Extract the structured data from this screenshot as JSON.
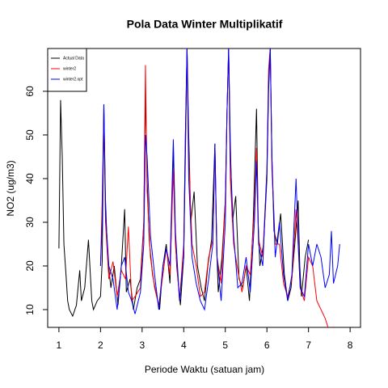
{
  "chart_data": {
    "type": "line",
    "title": "Pola Data Winter Multiplikatif",
    "x_label": "Periode Waktu (satuan jam)",
    "y_label": "NO2 (ug/m3)",
    "xlim": [
      0.73,
      8.25
    ],
    "ylim": [
      5.93,
      69.8
    ],
    "xticks": [
      1,
      2,
      3,
      4,
      5,
      6,
      7,
      8
    ],
    "yticks": [
      10,
      20,
      30,
      40,
      50,
      60
    ],
    "legend": "top-left",
    "series": [
      {
        "name": "Actual Data",
        "color": "#000000",
        "x": [
          1.0,
          1.04,
          1.08,
          1.12,
          1.17,
          1.21,
          1.25,
          1.33,
          1.42,
          1.5,
          1.54,
          1.62,
          1.71,
          1.79,
          1.83,
          1.92,
          2.0,
          2.04,
          2.08,
          2.12,
          2.17,
          2.25,
          2.33,
          2.42,
          2.5,
          2.58,
          2.62,
          2.71,
          2.79,
          2.88,
          2.96,
          3.04,
          3.08,
          3.12,
          3.17,
          3.25,
          3.33,
          3.42,
          3.5,
          3.58,
          3.67,
          3.75,
          3.79,
          3.83,
          3.92,
          4.0,
          4.04,
          4.08,
          4.12,
          4.17,
          4.25,
          4.33,
          4.42,
          4.5,
          4.58,
          4.67,
          4.75,
          4.79,
          4.83,
          4.92,
          5.0,
          5.04,
          5.08,
          5.12,
          5.17,
          5.25,
          5.33,
          5.42,
          5.5,
          5.58,
          5.67,
          5.75,
          5.79,
          5.83,
          5.92,
          6.0,
          6.04,
          6.08,
          6.12,
          6.17,
          6.25,
          6.33,
          6.42,
          6.5,
          6.58,
          6.67,
          6.75,
          6.79,
          6.83,
          6.92,
          7.0
        ],
        "values": [
          24,
          58,
          45,
          25,
          18,
          12,
          10,
          8.5,
          11,
          19,
          12,
          15,
          26,
          12,
          10,
          12,
          13,
          21,
          57,
          35,
          22,
          15,
          20,
          11,
          20,
          33,
          14,
          17,
          10,
          15,
          17,
          30,
          60,
          40,
          26,
          18,
          14,
          10,
          20,
          25,
          16,
          47,
          30,
          20,
          11,
          22,
          45,
          70,
          50,
          30,
          37,
          20,
          15,
          12,
          20,
          26,
          48,
          25,
          14,
          22,
          35,
          55,
          70,
          48,
          30,
          36,
          17,
          15,
          20,
          12,
          30,
          56,
          30,
          20,
          25,
          40,
          60,
          70,
          45,
          28,
          25,
          32,
          18,
          12,
          15,
          25,
          35,
          20,
          13,
          22,
          26
        ]
      },
      {
        "name": "winter2",
        "color": "#ff0000",
        "x": [
          2.0,
          2.04,
          2.08,
          2.12,
          2.2,
          2.3,
          2.4,
          2.5,
          2.6,
          2.67,
          2.75,
          2.83,
          2.96,
          3.04,
          3.08,
          3.12,
          3.2,
          3.3,
          3.4,
          3.5,
          3.58,
          3.67,
          3.75,
          3.8,
          3.9,
          4.0,
          4.04,
          4.08,
          4.12,
          4.2,
          4.3,
          4.4,
          4.5,
          4.6,
          4.7,
          4.75,
          4.8,
          4.9,
          5.0,
          5.04,
          5.08,
          5.12,
          5.2,
          5.3,
          5.4,
          5.5,
          5.6,
          5.7,
          5.75,
          5.8,
          5.9,
          6.0,
          6.04,
          6.08,
          6.12,
          6.2,
          6.3,
          6.4,
          6.5,
          6.6,
          6.7,
          6.75,
          6.8,
          6.9,
          7.0,
          7.1,
          7.2,
          7.3,
          7.4,
          7.5,
          7.6,
          7.65
        ],
        "values": [
          20,
          35,
          55,
          30,
          17,
          21,
          13,
          19,
          17,
          29,
          12,
          13,
          15,
          30,
          66,
          37,
          22,
          15,
          11,
          18,
          24,
          18,
          42,
          25,
          12,
          25,
          50,
          70,
          45,
          25,
          20,
          13,
          14,
          22,
          26,
          47,
          22,
          16,
          35,
          55,
          70,
          40,
          25,
          19,
          14,
          20,
          18,
          33,
          47,
          26,
          22,
          42,
          65,
          70,
          42,
          25,
          25,
          16,
          13,
          17,
          33,
          25,
          15,
          12,
          22,
          20,
          12,
          10,
          8,
          5,
          6,
          5
        ]
      },
      {
        "name": "winter2.opt",
        "color": "#0000ff",
        "x": [
          2.0,
          2.04,
          2.08,
          2.12,
          2.2,
          2.3,
          2.4,
          2.5,
          2.58,
          2.67,
          2.75,
          2.83,
          2.96,
          3.04,
          3.08,
          3.12,
          3.2,
          3.3,
          3.4,
          3.5,
          3.58,
          3.67,
          3.75,
          3.8,
          3.9,
          4.0,
          4.04,
          4.08,
          4.12,
          4.2,
          4.3,
          4.4,
          4.5,
          4.6,
          4.7,
          4.75,
          4.8,
          4.9,
          5.0,
          5.04,
          5.08,
          5.12,
          5.2,
          5.3,
          5.4,
          5.5,
          5.6,
          5.7,
          5.75,
          5.8,
          5.9,
          6.0,
          6.04,
          6.08,
          6.12,
          6.2,
          6.3,
          6.4,
          6.5,
          6.6,
          6.7,
          6.75,
          6.8,
          6.9,
          7.0,
          7.1,
          7.2,
          7.3,
          7.4,
          7.5,
          7.55,
          7.6,
          7.7,
          7.75
        ],
        "values": [
          20,
          30,
          57,
          32,
          20,
          17,
          10,
          20,
          22,
          14,
          12,
          9,
          14,
          25,
          50,
          45,
          27,
          18,
          10,
          20,
          24,
          20,
          49,
          28,
          12,
          22,
          50,
          70,
          40,
          22,
          16,
          12,
          10,
          17,
          25,
          48,
          22,
          12,
          30,
          55,
          70,
          45,
          27,
          15,
          16,
          22,
          14,
          30,
          44,
          25,
          20,
          42,
          62,
          70,
          45,
          22,
          30,
          18,
          12,
          18,
          40,
          26,
          15,
          13,
          25,
          20,
          25,
          22,
          15,
          18,
          28,
          16,
          20,
          25
        ]
      }
    ]
  }
}
